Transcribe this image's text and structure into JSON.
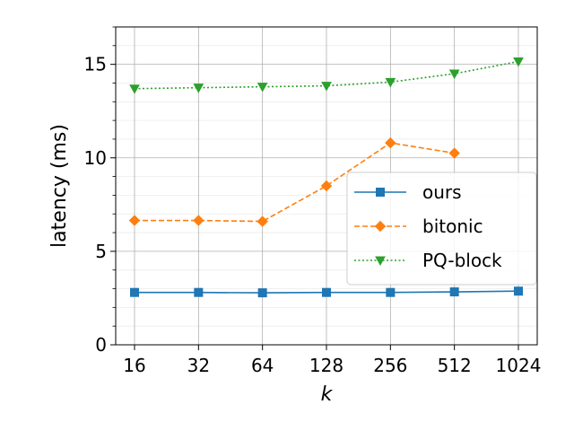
{
  "chart_data": {
    "type": "line",
    "title": "",
    "xlabel": "k",
    "ylabel": "latency (ms)",
    "x_categories": [
      "16",
      "32",
      "64",
      "128",
      "256",
      "512",
      "1024"
    ],
    "ylim": [
      0,
      17
    ],
    "yticks": [
      0,
      5,
      10,
      15
    ],
    "yticks_minor_step": 1,
    "grid": true,
    "legend_position": "center-right",
    "series": [
      {
        "name": "ours",
        "color": "#1f77b4",
        "line_style": "solid",
        "marker": "square",
        "values": [
          2.8,
          2.8,
          2.78,
          2.8,
          2.8,
          2.83,
          2.87
        ]
      },
      {
        "name": "bitonic",
        "color": "#ff7f0e",
        "line_style": "dashed",
        "marker": "diamond",
        "values": [
          6.65,
          6.65,
          6.6,
          8.5,
          10.8,
          10.25,
          null
        ]
      },
      {
        "name": "PQ-block",
        "color": "#2ca02c",
        "line_style": "dotted",
        "marker": "triangle-down",
        "values": [
          13.7,
          13.75,
          13.8,
          13.85,
          14.05,
          14.5,
          15.15
        ]
      }
    ]
  }
}
